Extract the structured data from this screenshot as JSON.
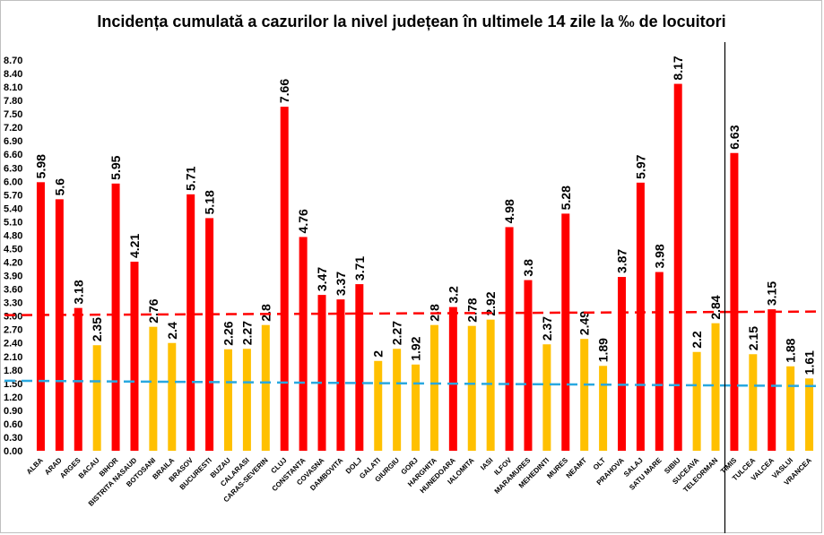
{
  "chart_data": {
    "type": "bar",
    "title": "Incidența cumulată a cazurilor la nivel județean în ultimele 14 zile la ‰ de locuitori",
    "xlabel": "",
    "ylabel": "",
    "ylim": [
      0,
      8.7
    ],
    "ytick_step": 0.3,
    "yticks": [
      "0.00",
      "0.30",
      "0.60",
      "0.90",
      "1.20",
      "1.50",
      "1.80",
      "2.10",
      "2.40",
      "2.70",
      "3.00",
      "3.30",
      "3.60",
      "3.90",
      "4.20",
      "4.50",
      "4.80",
      "5.10",
      "5.40",
      "5.70",
      "6.00",
      "6.30",
      "6.60",
      "6.90",
      "7.20",
      "7.50",
      "7.80",
      "8.10",
      "8.40",
      "8.70"
    ],
    "categories": [
      "ALBA",
      "ARAD",
      "ARGES",
      "BACAU",
      "BIHOR",
      "BISTRITA NASAUD",
      "BOTOSANI",
      "BRAILA",
      "BRASOV",
      "BUCURESTI",
      "BUZAU",
      "CALARASI",
      "CARAS-SEVERIN",
      "CLUJ",
      "CONSTANTA",
      "COVASNA",
      "DAMBOVITA",
      "DOLJ",
      "GALATI",
      "GIURGIU",
      "GORJ",
      "HARGHITA",
      "HUNEDOARA",
      "IALOMITA",
      "IASI",
      "ILFOV",
      "MARAMURES",
      "MEHEDINTI",
      "MURES",
      "NEAMT",
      "OLT",
      "PRAHOVA",
      "SALAJ",
      "SATU MARE",
      "SIBIU",
      "SUCEAVA",
      "TELEORMAN",
      "TIMIS",
      "TULCEA",
      "VALCEA",
      "VASLUI",
      "VRANCEA"
    ],
    "values": [
      5.98,
      5.6,
      3.18,
      2.35,
      5.95,
      4.21,
      2.76,
      2.4,
      5.71,
      5.18,
      2.26,
      2.27,
      2.8,
      7.66,
      4.76,
      3.47,
      3.37,
      3.71,
      2,
      2.27,
      1.92,
      2.8,
      3.2,
      2.78,
      2.92,
      4.98,
      3.8,
      2.37,
      5.28,
      2.49,
      1.89,
      3.87,
      5.97,
      3.98,
      8.17,
      2.2,
      2.84,
      6.63,
      2.15,
      3.15,
      1.88,
      1.61
    ],
    "labels": [
      "5.98",
      "5.6",
      "3.18",
      "2.35",
      "5.95",
      "4.21",
      "2.76",
      "2.4",
      "5.71",
      "5.18",
      "2.26",
      "2.27",
      "2.8",
      "7.66",
      "4.76",
      "3.47",
      "3.37",
      "3.71",
      "2",
      "2.27",
      "1.92",
      "2.8",
      "3.2",
      "2.78",
      "2.92",
      "4.98",
      "3.8",
      "2.37",
      "5.28",
      "2.49",
      "1.89",
      "3.87",
      "5.97",
      "3.98",
      "8.17",
      "2.2",
      "2.84",
      "6.63",
      "2.15",
      "3.15",
      "1.88",
      "1.61"
    ],
    "threshold_high": 3.0,
    "threshold_low": 1.5,
    "colors": {
      "above_3": "#ff0000",
      "below_3": "#ffc000",
      "threshold_high_line": "#ff0000",
      "threshold_low_line": "#29a8e0",
      "separator": "#000000"
    },
    "separator_after": "TELEORMAN",
    "grid": false,
    "legend": "none"
  }
}
